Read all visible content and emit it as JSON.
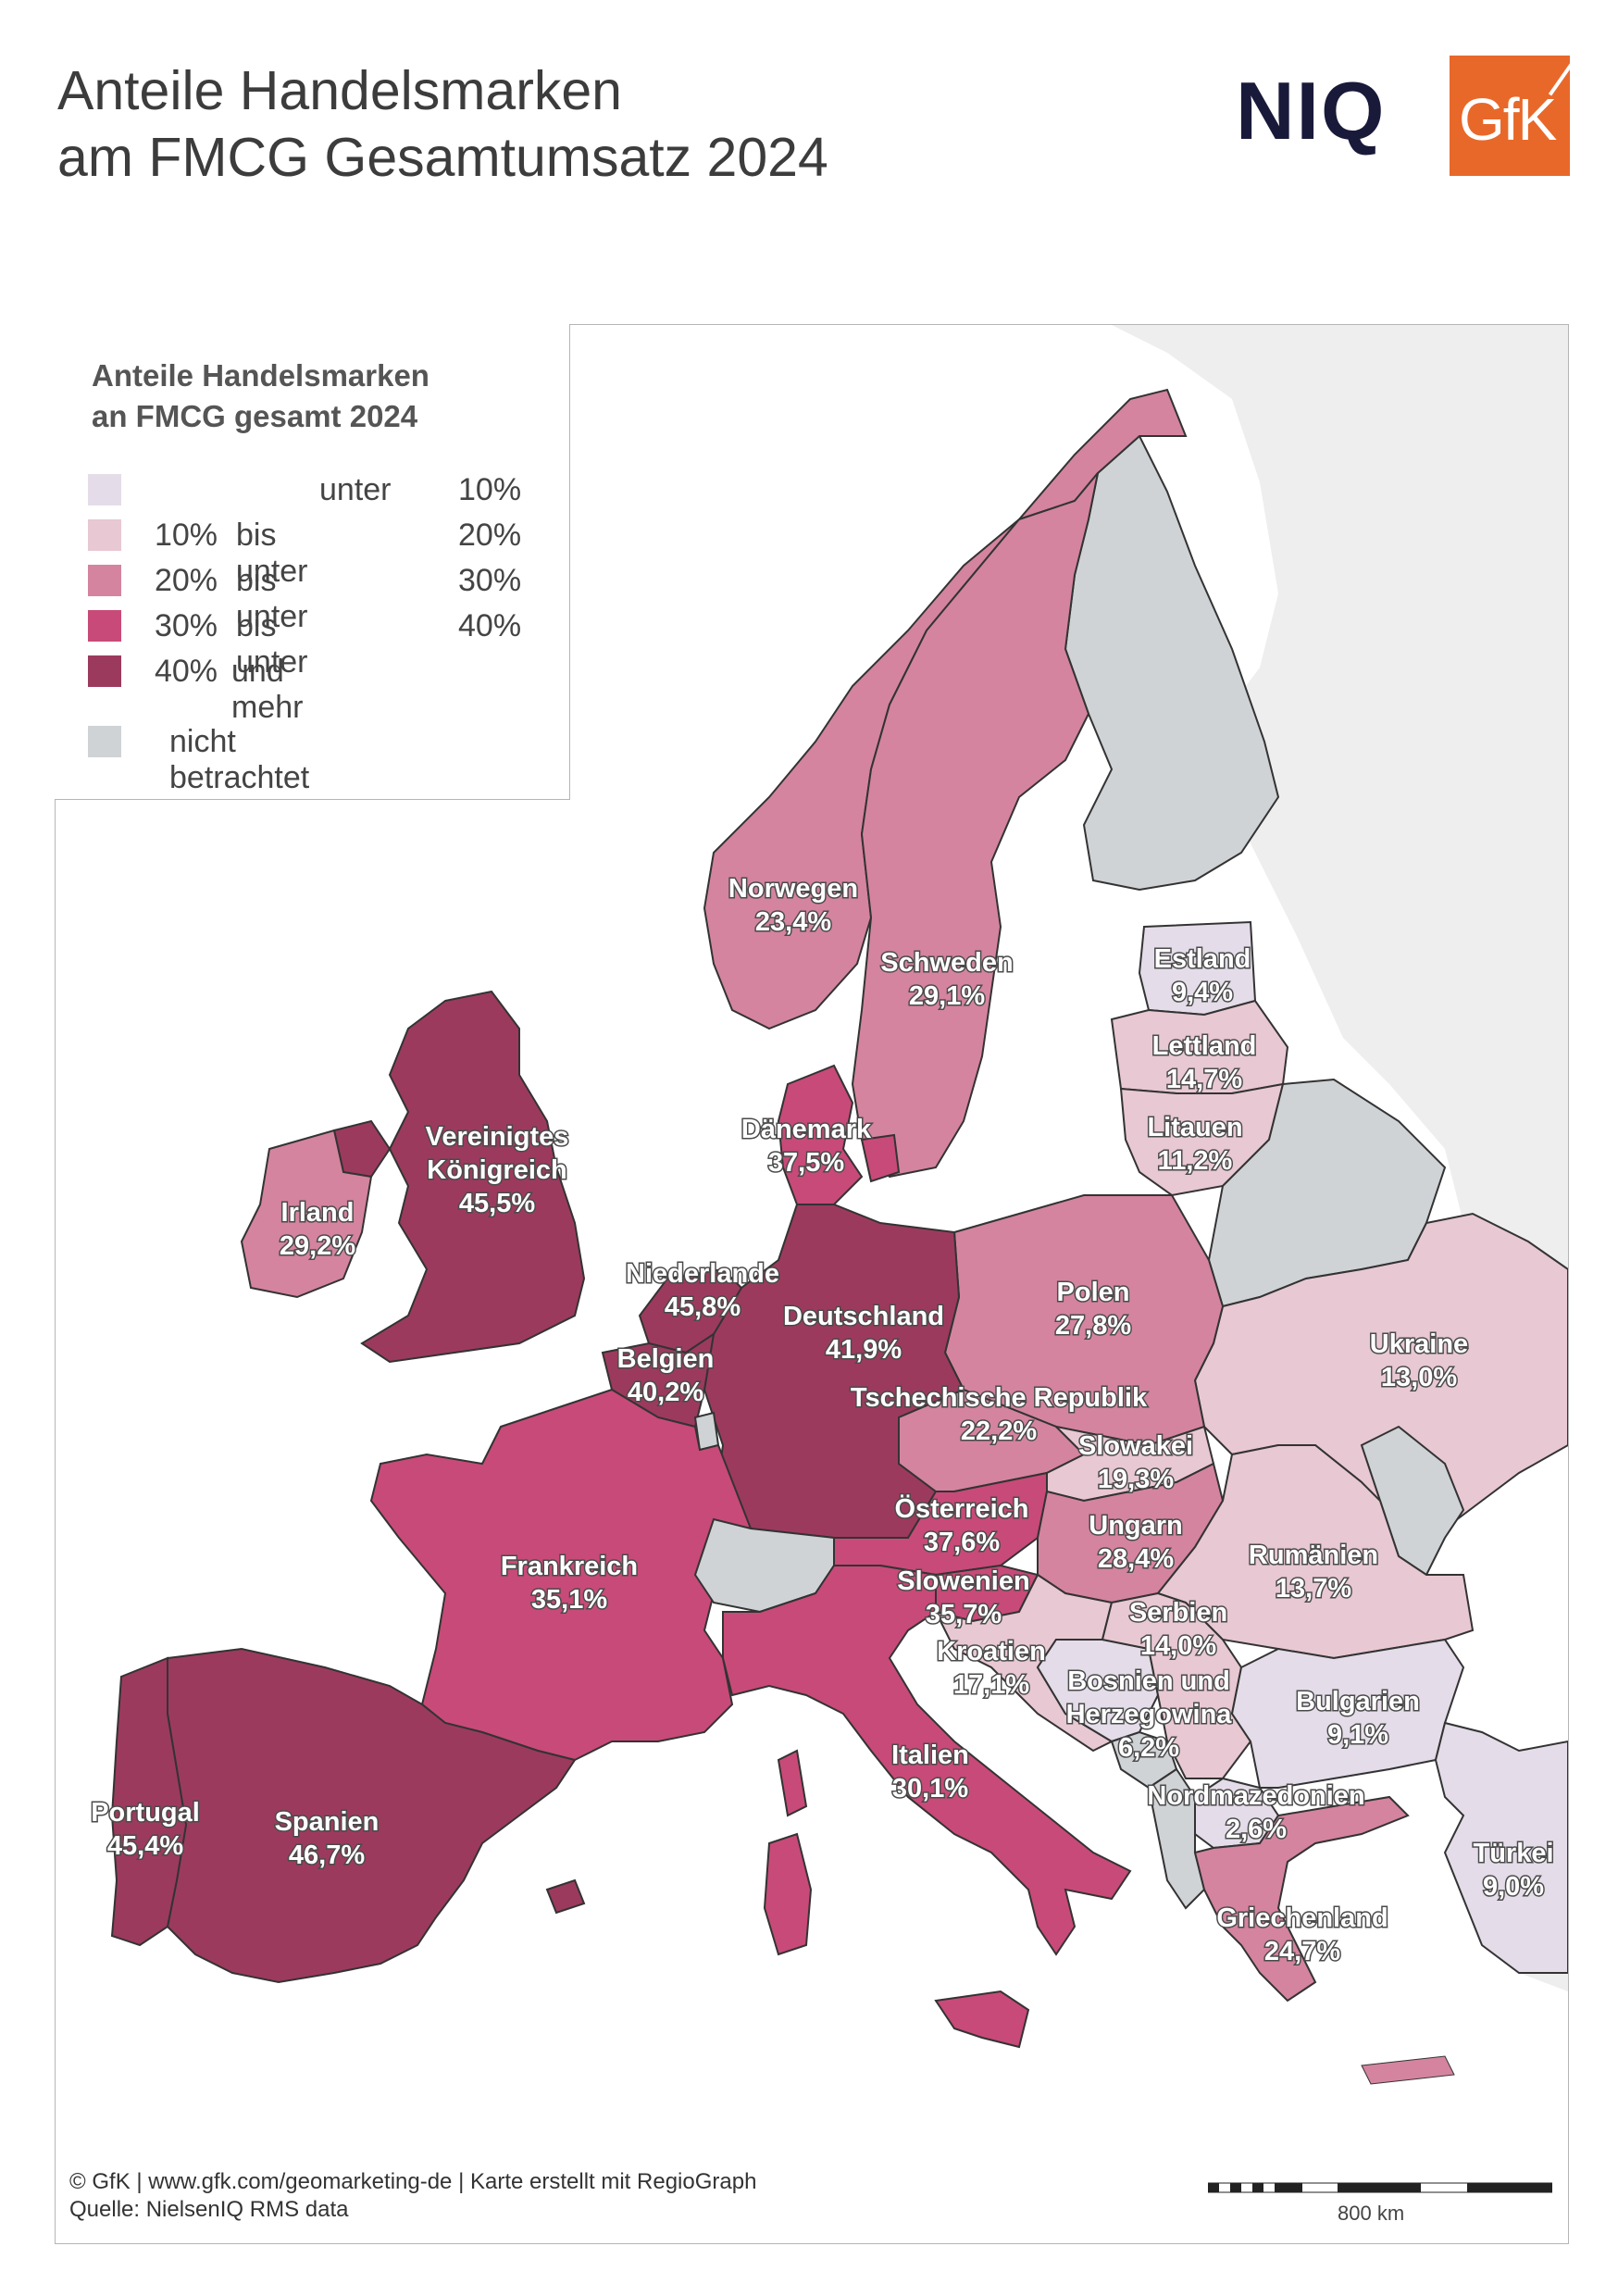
{
  "header": {
    "title_line1": "Anteile Handelsmarken",
    "title_line2": "am FMCG Gesamtumsatz 2024",
    "logo_niq": "NIQ",
    "logo_gfk": "GfK"
  },
  "legend": {
    "title_line1": "Anteile Handelsmarken",
    "title_line2": "an FMCG gesamt 2024",
    "classes": [
      {
        "a": "",
        "b": "unter",
        "c": "10%",
        "color": "#e4dce8"
      },
      {
        "a": "10%",
        "b": "bis unter",
        "c": "20%",
        "color": "#e8c8d2"
      },
      {
        "a": "20%",
        "b": "bis unter",
        "c": "30%",
        "color": "#d4849e"
      },
      {
        "a": "30%",
        "b": "bis unter",
        "c": "40%",
        "color": "#c84a78"
      },
      {
        "a": "40%",
        "b": "und mehr",
        "c": "",
        "color": "#9c3a5e"
      }
    ],
    "not_considered": {
      "label": "nicht betrachtet",
      "color": "#cfd3d6"
    }
  },
  "colors": {
    "class1": "#e4dce8",
    "class2": "#e8c8d2",
    "class3": "#d4849e",
    "class4": "#c84a78",
    "class5": "#9c3a5e",
    "not_considered": "#cfd3d6",
    "outside": "#eeeeee",
    "border": "#333333"
  },
  "countries": [
    {
      "name": "Norwegen",
      "value": "23,4%"
    },
    {
      "name": "Schweden",
      "value": "29,1%"
    },
    {
      "name": "Estland",
      "value": "9,4%"
    },
    {
      "name": "Lettland",
      "value": "14,7%"
    },
    {
      "name": "Litauen",
      "value": "11,2%"
    },
    {
      "name": "Dänemark",
      "value": "37,5%"
    },
    {
      "name": "Vereinigtes",
      "name2": "Königreich",
      "value": "45,5%"
    },
    {
      "name": "Irland",
      "value": "29,2%"
    },
    {
      "name": "Niederlande",
      "value": "45,8%"
    },
    {
      "name": "Deutschland",
      "value": "41,9%"
    },
    {
      "name": "Belgien",
      "value": "40,2%"
    },
    {
      "name": "Polen",
      "value": "27,8%"
    },
    {
      "name": "Ukraine",
      "value": "13,0%"
    },
    {
      "name": "Tschechische Republik",
      "value": "22,2%"
    },
    {
      "name": "Slowakei",
      "value": "19,3%"
    },
    {
      "name": "Österreich",
      "value": "37,6%"
    },
    {
      "name": "Ungarn",
      "value": "28,4%"
    },
    {
      "name": "Frankreich",
      "value": "35,1%"
    },
    {
      "name": "Slowenien",
      "value": "35,7%"
    },
    {
      "name": "Rumänien",
      "value": "13,7%"
    },
    {
      "name": "Serbien",
      "value": "14,0%"
    },
    {
      "name": "Kroatien",
      "value": "17,1%"
    },
    {
      "name": "Bosnien und",
      "name2": "Herzegowina",
      "value": "6,2%"
    },
    {
      "name": "Bulgarien",
      "value": "9,1%"
    },
    {
      "name": "Italien",
      "value": "30,1%"
    },
    {
      "name": "Portugal",
      "value": "45,4%"
    },
    {
      "name": "Spanien",
      "value": "46,7%"
    },
    {
      "name": "Nordmazedonien",
      "value": "2,6%"
    },
    {
      "name": "Türkei",
      "value": "9,0%"
    },
    {
      "name": "Griechenland",
      "value": "24,7%"
    }
  ],
  "footer": {
    "line1": "© GfK | www.gfk.com/geomarketing-de | Karte erstellt mit RegioGraph",
    "line2": "Quelle: NielsenIQ RMS data"
  },
  "scale": {
    "label": "800 km"
  }
}
